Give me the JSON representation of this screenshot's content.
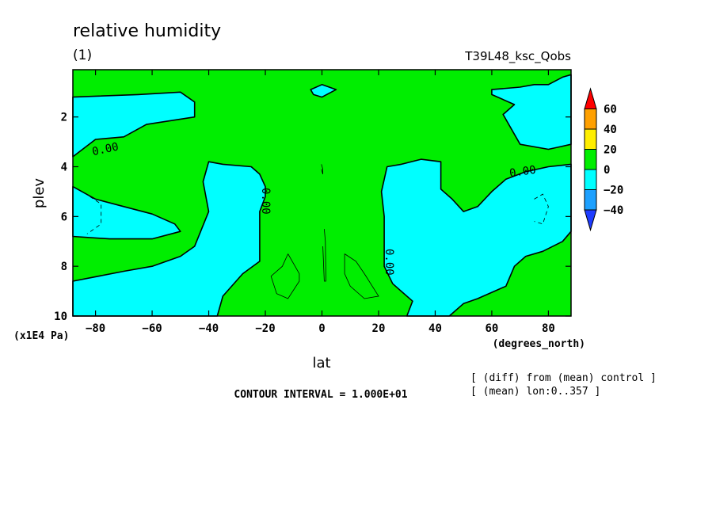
{
  "chart_data": {
    "type": "contour",
    "title": "relative humidity",
    "subtitle": "(1)",
    "run_label": "T39L48_ksc_Qobs",
    "xlabel": "lat",
    "xunit": "(degrees_north)",
    "ylabel": "plev",
    "yunit": "(x1E4 Pa)",
    "xlim": [
      -88,
      88
    ],
    "ylim": [
      10,
      0.1
    ],
    "x_ticks": [
      -80,
      -60,
      -40,
      -20,
      0,
      20,
      40,
      60,
      80
    ],
    "x_tick_labels": [
      "-80",
      "-60",
      "-40",
      "-20",
      "0",
      "20",
      "40",
      "60",
      "80"
    ],
    "y_ticks": [
      2,
      4,
      6,
      8,
      10
    ],
    "y_tick_labels": [
      "2",
      "4",
      "6",
      "8",
      "10"
    ],
    "contour_labels": [
      "0.00",
      "0.00",
      "0.00",
      "0.00"
    ],
    "contour_interval_text": "CONTOUR INTERVAL = 1.000E+01",
    "notes": [
      "[ (diff) from (mean) control ]",
      "[ (mean) lon:0..357 ]"
    ],
    "colorbar": {
      "levels": [
        60,
        40,
        20,
        0,
        -20,
        -40
      ],
      "level_labels": [
        "60",
        "40",
        "20",
        "0",
        "−20",
        "−40"
      ],
      "colors": [
        "#ff0000",
        "#ffa000",
        "#ffee00",
        "#00ee00",
        "#00ffff",
        "#1ca0ff",
        "#1e3cff"
      ]
    },
    "fill_colors": {
      "positive": "#00ee00",
      "negative": "#00ffff"
    },
    "regions": [
      {
        "sign": "negative",
        "points": [
          [
            -88,
            1.2
          ],
          [
            -65,
            1.1
          ],
          [
            -50,
            1.0
          ],
          [
            -45,
            1.4
          ],
          [
            -45,
            2.0
          ],
          [
            -62,
            2.3
          ],
          [
            -70,
            2.8
          ],
          [
            -80,
            2.9
          ],
          [
            -88,
            3.6
          ]
        ]
      },
      {
        "sign": "negative",
        "points": [
          [
            -88,
            4.8
          ],
          [
            -80,
            5.3
          ],
          [
            -70,
            5.6
          ],
          [
            -60,
            5.9
          ],
          [
            -52,
            6.3
          ],
          [
            -50,
            6.6
          ],
          [
            -60,
            6.9
          ],
          [
            -75,
            6.9
          ],
          [
            -88,
            6.8
          ]
        ]
      },
      {
        "sign": "negative",
        "points": [
          [
            -88,
            8.6
          ],
          [
            -70,
            8.2
          ],
          [
            -60,
            8.0
          ],
          [
            -50,
            7.6
          ],
          [
            -45,
            7.2
          ],
          [
            -40,
            5.8
          ],
          [
            -42,
            4.6
          ],
          [
            -40,
            3.8
          ],
          [
            -35,
            3.9
          ],
          [
            -25,
            4.0
          ],
          [
            -22,
            4.3
          ],
          [
            -20,
            4.8
          ],
          [
            -20,
            5.2
          ],
          [
            -22,
            5.8
          ],
          [
            -22,
            6.6
          ],
          [
            -22,
            7.8
          ],
          [
            -28,
            8.3
          ],
          [
            -35,
            9.2
          ],
          [
            -37,
            10.0
          ],
          [
            -88,
            10.0
          ]
        ]
      },
      {
        "sign": "negative",
        "points": [
          [
            22,
            8.0
          ],
          [
            22,
            6.0
          ],
          [
            21,
            5.0
          ],
          [
            23,
            4.0
          ],
          [
            28,
            3.9
          ],
          [
            35,
            3.7
          ],
          [
            42,
            3.8
          ],
          [
            42,
            4.9
          ],
          [
            46,
            5.3
          ],
          [
            50,
            5.8
          ],
          [
            55,
            5.6
          ],
          [
            60,
            5.0
          ],
          [
            65,
            4.5
          ],
          [
            72,
            4.2
          ],
          [
            80,
            4.0
          ],
          [
            88,
            3.9
          ],
          [
            88,
            6.6
          ],
          [
            85,
            7.0
          ],
          [
            78,
            7.4
          ],
          [
            72,
            7.6
          ],
          [
            68,
            8.0
          ],
          [
            65,
            8.8
          ],
          [
            55,
            9.3
          ],
          [
            50,
            9.5
          ],
          [
            45,
            10.0
          ],
          [
            30,
            10.0
          ],
          [
            32,
            9.4
          ],
          [
            25,
            8.7
          ]
        ]
      },
      {
        "sign": "negative",
        "points": [
          [
            60,
            0.9
          ],
          [
            70,
            0.8
          ],
          [
            75,
            0.7
          ],
          [
            80,
            0.7
          ],
          [
            85,
            0.4
          ],
          [
            88,
            0.3
          ],
          [
            88,
            3.1
          ],
          [
            84,
            3.2
          ],
          [
            80,
            3.3
          ],
          [
            70,
            3.1
          ],
          [
            64,
            1.9
          ],
          [
            68,
            1.5
          ],
          [
            60,
            1.1
          ]
        ]
      },
      {
        "sign": "negative",
        "points": [
          [
            -4,
            0.9
          ],
          [
            0,
            0.7
          ],
          [
            5,
            0.9
          ],
          [
            0,
            1.2
          ],
          [
            -3,
            1.1
          ]
        ]
      }
    ],
    "minor_contours": [
      [
        [
          -12,
          7.5
        ],
        [
          -8,
          8.3
        ],
        [
          -8,
          8.6
        ],
        [
          -12,
          9.3
        ],
        [
          -16,
          9.1
        ],
        [
          -18,
          8.4
        ],
        [
          -14,
          8.0
        ],
        [
          -12,
          7.5
        ]
      ],
      [
        [
          8,
          7.5
        ],
        [
          12,
          7.8
        ],
        [
          15,
          8.3
        ],
        [
          20,
          9.2
        ],
        [
          15,
          9.3
        ],
        [
          10,
          8.8
        ],
        [
          8,
          8.3
        ],
        [
          8,
          7.5
        ]
      ],
      [
        [
          -82,
          5.2
        ],
        [
          -78,
          5.5
        ],
        [
          -78,
          6.3
        ],
        [
          -83,
          6.7
        ]
      ],
      [
        [
          75,
          5.3
        ],
        [
          78,
          5.1
        ],
        [
          80,
          5.6
        ],
        [
          78,
          6.3
        ],
        [
          75,
          6.2
        ]
      ],
      [
        [
          0.8,
          6.5
        ],
        [
          1.2,
          7.0
        ],
        [
          1.4,
          8.6
        ],
        [
          0.8,
          8.6
        ],
        [
          0.3,
          7.2
        ]
      ],
      [
        [
          -0.2,
          3.9
        ],
        [
          0.3,
          4.1
        ],
        [
          0.3,
          4.3
        ],
        [
          -0.2,
          4.1
        ]
      ]
    ]
  }
}
